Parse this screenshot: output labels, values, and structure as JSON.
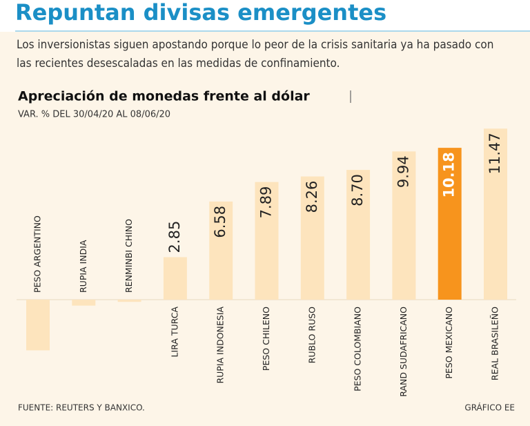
{
  "chart_data": {
    "type": "bar",
    "title": "Repuntan divisas emergentes",
    "description": "Los inversionistas siguen apostando porque lo peor de la crisis sanitaria ya ha pasado con las recientes desescaladas en las medidas de confinamiento.",
    "chart_title": "Apreciación de monedas frente al dólar",
    "subtitle": "VAR. % DEL 30/04/20 AL 08/06/20",
    "categories": [
      "PESO ARGENTINO",
      "RUPIA INDIA",
      "RENMINBI CHINO",
      "LIRA TURCA",
      "RUPIA INDONESIA",
      "PESO CHILENO",
      "RUBLO RUSO",
      "PESO COLOMBIANO",
      "RAND SUDAFRICANO",
      "PESO MEXICANO",
      "REAL BRASILEÑO"
    ],
    "values": [
      -3.4,
      -0.4,
      -0.15,
      2.85,
      6.58,
      7.89,
      8.26,
      8.7,
      9.94,
      10.18,
      11.47
    ],
    "value_labels": [
      null,
      null,
      null,
      "2.85",
      "6.58",
      "7.89",
      "8.26",
      "8.70",
      "9.94",
      "10.18",
      "11.47"
    ],
    "colors": [
      "#fde4bd",
      "#fde4bd",
      "#fde4bd",
      "#fde4bd",
      "#fde4bd",
      "#fde4bd",
      "#fde4bd",
      "#fde4bd",
      "#fde4bd",
      "#f7941d",
      "#fde4bd"
    ],
    "source": "FUENTE: REUTERS Y BANXICO.",
    "credit": "GRÁFICO EE"
  }
}
